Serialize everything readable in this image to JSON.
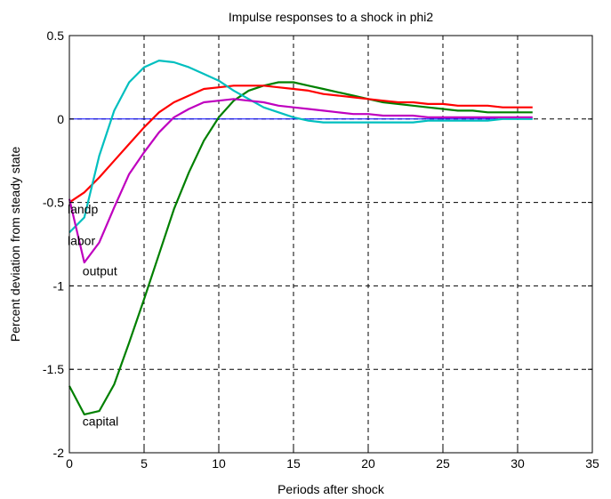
{
  "chart_data": {
    "type": "line",
    "title": "Impulse responses to a shock in phi2",
    "xlabel": "Periods after shock",
    "ylabel": "Percent deviation from steady state",
    "xlim": [
      0,
      35
    ],
    "ylim": [
      -2,
      0.5
    ],
    "xticks": [
      0,
      5,
      10,
      15,
      20,
      25,
      30,
      35
    ],
    "yticks": [
      0.5,
      0,
      -0.5,
      -1,
      -1.5,
      -2
    ],
    "xtick_labels": [
      "0",
      "5",
      "10",
      "15",
      "20",
      "25",
      "30",
      "35"
    ],
    "ytick_labels": [
      "0.5",
      "0",
      "-0.5",
      "-1",
      "-1.5",
      "-2"
    ],
    "grid": true,
    "zero_line": true,
    "series": [
      {
        "name": "capital",
        "color": "#008000",
        "x": [
          0,
          1,
          2,
          3,
          4,
          5,
          6,
          7,
          8,
          9,
          10,
          11,
          12,
          13,
          14,
          15,
          16,
          17,
          18,
          19,
          20,
          21,
          22,
          23,
          24,
          25,
          26,
          27,
          28,
          29,
          30,
          31
        ],
        "y": [
          -1.6,
          -1.77,
          -1.75,
          -1.59,
          -1.34,
          -1.08,
          -0.81,
          -0.54,
          -0.32,
          -0.13,
          0.01,
          0.11,
          0.17,
          0.2,
          0.22,
          0.22,
          0.2,
          0.18,
          0.16,
          0.14,
          0.12,
          0.1,
          0.09,
          0.08,
          0.07,
          0.06,
          0.05,
          0.05,
          0.04,
          0.04,
          0.04,
          0.04
        ]
      },
      {
        "name": "landp",
        "color": "#ff0000",
        "x": [
          0,
          1,
          2,
          3,
          4,
          5,
          6,
          7,
          8,
          9,
          10,
          11,
          12,
          13,
          14,
          15,
          16,
          17,
          18,
          19,
          20,
          21,
          22,
          23,
          24,
          25,
          26,
          27,
          28,
          29,
          30,
          31
        ],
        "y": [
          -0.5,
          -0.44,
          -0.35,
          -0.25,
          -0.15,
          -0.05,
          0.04,
          0.1,
          0.14,
          0.18,
          0.19,
          0.2,
          0.2,
          0.2,
          0.19,
          0.18,
          0.17,
          0.15,
          0.14,
          0.13,
          0.12,
          0.11,
          0.1,
          0.1,
          0.09,
          0.09,
          0.08,
          0.08,
          0.08,
          0.07,
          0.07,
          0.07
        ]
      },
      {
        "name": "labor",
        "color": "#00bfbf",
        "x": [
          0,
          1,
          2,
          3,
          4,
          5,
          6,
          7,
          8,
          9,
          10,
          11,
          12,
          13,
          14,
          15,
          16,
          17,
          18,
          19,
          20,
          21,
          22,
          23,
          24,
          25,
          26,
          27,
          28,
          29,
          30,
          31
        ],
        "y": [
          -0.68,
          -0.59,
          -0.22,
          0.05,
          0.22,
          0.31,
          0.35,
          0.34,
          0.31,
          0.27,
          0.23,
          0.17,
          0.12,
          0.07,
          0.04,
          0.01,
          -0.01,
          -0.02,
          -0.02,
          -0.02,
          -0.02,
          -0.02,
          -0.02,
          -0.02,
          -0.01,
          -0.01,
          -0.01,
          -0.01,
          -0.01,
          0.0,
          0.0,
          0.0
        ]
      },
      {
        "name": "output",
        "color": "#bf00bf",
        "x": [
          0,
          1,
          2,
          3,
          4,
          5,
          6,
          7,
          8,
          9,
          10,
          11,
          12,
          13,
          14,
          15,
          16,
          17,
          18,
          19,
          20,
          21,
          22,
          23,
          24,
          25,
          26,
          27,
          28,
          29,
          30,
          31
        ],
        "y": [
          -0.48,
          -0.86,
          -0.74,
          -0.53,
          -0.33,
          -0.2,
          -0.08,
          0.01,
          0.06,
          0.1,
          0.11,
          0.12,
          0.11,
          0.1,
          0.08,
          0.07,
          0.06,
          0.05,
          0.04,
          0.03,
          0.03,
          0.02,
          0.02,
          0.02,
          0.01,
          0.01,
          0.01,
          0.01,
          0.01,
          0.01,
          0.01,
          0.01
        ]
      }
    ],
    "annotations": [
      {
        "text": "landp",
        "x": 0.0,
        "y": -0.54
      },
      {
        "text": "labor",
        "x": 0.0,
        "y": -0.73
      },
      {
        "text": "output",
        "x": 1.0,
        "y": -0.91
      },
      {
        "text": "capital",
        "x": 1.0,
        "y": -1.81
      }
    ]
  }
}
